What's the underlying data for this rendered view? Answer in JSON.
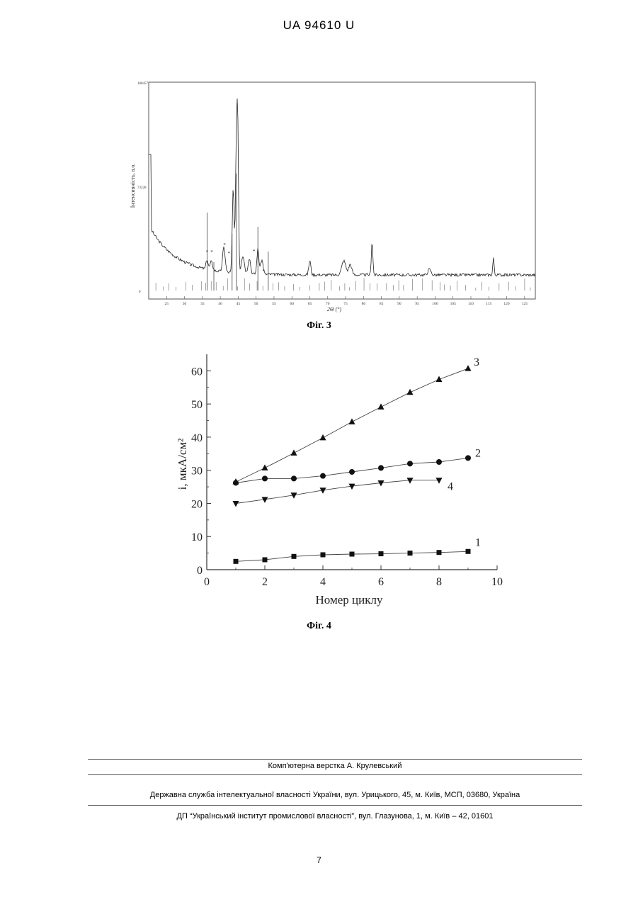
{
  "header": {
    "doc_number": "UA   94610   U"
  },
  "figure3": {
    "caption": "Фіг. 3",
    "ylabel": "Інтенсивність, в.о.",
    "xlabel": "2Θ (°)",
    "ytick_labels": [
      "180457",
      "73228",
      "0"
    ],
    "xtick_labels": [
      "25",
      "30",
      "35",
      "40",
      "45",
      "50",
      "55",
      "60",
      "65",
      "70",
      "75",
      "80",
      "85",
      "90",
      "95",
      "100",
      "105",
      "110",
      "115",
      "120",
      "125"
    ],
    "marker_glyph": "*"
  },
  "chart_data": {
    "type": "line",
    "ylabel": "i, мкА/см²",
    "xlabel": "Номер циклу",
    "xlim": [
      0,
      10
    ],
    "ylim": [
      0,
      65
    ],
    "xticks": [
      0,
      2,
      4,
      6,
      8,
      10
    ],
    "yticks": [
      0,
      10,
      20,
      30,
      40,
      50,
      60
    ],
    "series": [
      {
        "name": "1",
        "marker": "square",
        "x": [
          1,
          2,
          3,
          4,
          5,
          6,
          7,
          8,
          9
        ],
        "values": [
          2.5,
          3,
          4,
          4.5,
          4.7,
          4.8,
          5,
          5.2,
          5.5
        ]
      },
      {
        "name": "2",
        "marker": "circle",
        "x": [
          1,
          2,
          3,
          4,
          5,
          6,
          7,
          8,
          9
        ],
        "values": [
          26.2,
          27.5,
          27.5,
          28.3,
          29.5,
          30.7,
          32,
          32.5,
          33.7
        ]
      },
      {
        "name": "3",
        "marker": "triangle-up",
        "x": [
          1,
          2,
          3,
          4,
          5,
          6,
          7,
          8,
          9
        ],
        "values": [
          26.5,
          30.7,
          35.2,
          39.8,
          44.6,
          49.1,
          53.5,
          57.4,
          60.7
        ]
      },
      {
        "name": "4",
        "marker": "triangle-down",
        "x": [
          1,
          2,
          3,
          4,
          5,
          6,
          7,
          8
        ],
        "values": [
          20,
          21.2,
          22.5,
          24,
          25.2,
          26.2,
          27,
          27
        ]
      }
    ]
  },
  "figure4": {
    "caption": "Фіг. 4"
  },
  "footer": {
    "layout_credit": "Комп'ютерна верстка А. Крулевський",
    "agency": "Державна служба інтелектуальної власності України, вул. Урицького, 45, м. Київ, МСП, 03680, Україна",
    "institute": "ДП “Український інститут промислової власності”, вул. Глазунова, 1, м. Київ – 42, 01601",
    "page_number": "7"
  }
}
